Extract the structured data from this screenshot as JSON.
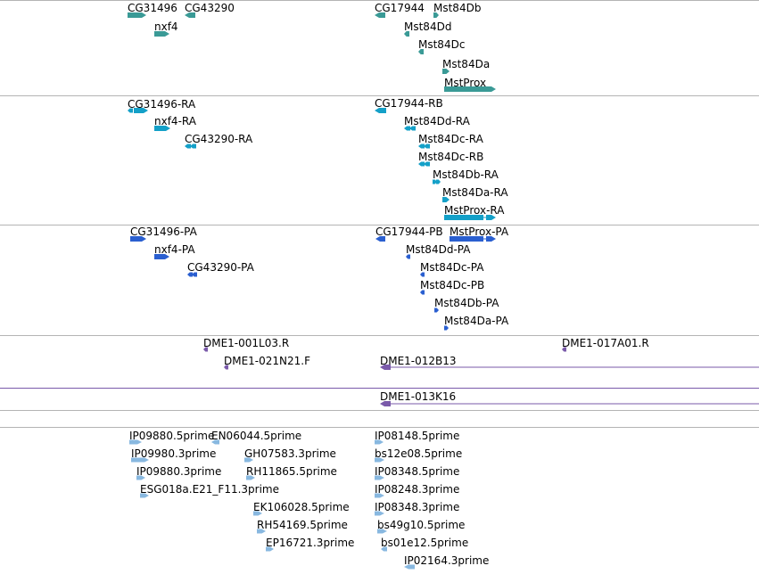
{
  "colors": {
    "track_divider": "#b4b4b4",
    "gene": "#3a9a96",
    "transcript": "#14a0c8",
    "protein": "#2a5fd0",
    "clone": "#7a5aaa",
    "cdna": "#88b8e0"
  },
  "tracks": [
    {
      "name": "genes",
      "color_key": "gene",
      "features": [
        {
          "label": "CG31496",
          "strand": "+"
        },
        {
          "label": "CG43290",
          "strand": "-"
        },
        {
          "label": "nxf4",
          "strand": "+"
        },
        {
          "label": "CG17944",
          "strand": "-"
        },
        {
          "label": "Mst84Db",
          "strand": "+"
        },
        {
          "label": "Mst84Dd",
          "strand": "-"
        },
        {
          "label": "Mst84Dc",
          "strand": "-"
        },
        {
          "label": "Mst84Da",
          "strand": "+"
        },
        {
          "label": "MstProx",
          "strand": "+"
        }
      ]
    },
    {
      "name": "transcripts",
      "color_key": "transcript",
      "features": [
        {
          "label": "CG31496-RA",
          "strand": "+"
        },
        {
          "label": "nxf4-RA",
          "strand": "+"
        },
        {
          "label": "CG43290-RA",
          "strand": "-"
        },
        {
          "label": "CG17944-RB",
          "strand": "-"
        },
        {
          "label": "Mst84Dd-RA",
          "strand": "-"
        },
        {
          "label": "Mst84Dc-RA",
          "strand": "-"
        },
        {
          "label": "Mst84Dc-RB",
          "strand": "-"
        },
        {
          "label": "Mst84Db-RA",
          "strand": "+"
        },
        {
          "label": "Mst84Da-RA",
          "strand": "+"
        },
        {
          "label": "MstProx-RA",
          "strand": "+"
        }
      ]
    },
    {
      "name": "proteins",
      "color_key": "protein",
      "features": [
        {
          "label": "CG31496-PA",
          "strand": "+"
        },
        {
          "label": "nxf4-PA",
          "strand": "+"
        },
        {
          "label": "CG43290-PA",
          "strand": "-"
        },
        {
          "label": "CG17944-PB",
          "strand": "-"
        },
        {
          "label": "MstProx-PA",
          "strand": "+"
        },
        {
          "label": "Mst84Dd-PA",
          "strand": "-"
        },
        {
          "label": "Mst84Dc-PA",
          "strand": "-"
        },
        {
          "label": "Mst84Dc-PB",
          "strand": "-"
        },
        {
          "label": "Mst84Db-PA",
          "strand": "+"
        },
        {
          "label": "Mst84Da-PA",
          "strand": "+"
        }
      ]
    },
    {
      "name": "clones-a",
      "color_key": "clone",
      "features": [
        {
          "label": "DME1-001L03.R",
          "strand": "-"
        },
        {
          "label": "DME1-017A01.R",
          "strand": "-"
        },
        {
          "label": "DME1-021N21.F",
          "strand": "-"
        },
        {
          "label": "DME1-012B13",
          "strand": "-"
        }
      ]
    },
    {
      "name": "clones-b",
      "color_key": "clone",
      "features": [
        {
          "label": "DME1-013K16",
          "strand": "-"
        }
      ]
    },
    {
      "name": "empty",
      "color_key": "clone",
      "features": []
    },
    {
      "name": "cdna-ends",
      "color_key": "cdna",
      "features": [
        {
          "label": "IP09880.5prime",
          "strand": "+"
        },
        {
          "label": "EN06044.5prime",
          "strand": "-"
        },
        {
          "label": "IP08148.5prime",
          "strand": "+"
        },
        {
          "label": "IP09980.3prime",
          "strand": "+"
        },
        {
          "label": "GH07583.3prime",
          "strand": "+"
        },
        {
          "label": "bs12e08.5prime",
          "strand": "+"
        },
        {
          "label": "IP09880.3prime",
          "strand": "+"
        },
        {
          "label": "RH11865.5prime",
          "strand": "+"
        },
        {
          "label": "IP08348.5prime",
          "strand": "+"
        },
        {
          "label": "ESG018a.E21_F11.3prime",
          "strand": "+"
        },
        {
          "label": "IP08248.3prime",
          "strand": "+"
        },
        {
          "label": "EK106028.5prime",
          "strand": "+"
        },
        {
          "label": "IP08348.3prime",
          "strand": "+"
        },
        {
          "label": "RH54169.5prime",
          "strand": "+"
        },
        {
          "label": "bs49g10.5prime",
          "strand": "+"
        },
        {
          "label": "EP16721.3prime",
          "strand": "+"
        },
        {
          "label": "bs01e12.5prime",
          "strand": "-"
        },
        {
          "label": "IP02164.3prime",
          "strand": "-"
        }
      ]
    }
  ]
}
